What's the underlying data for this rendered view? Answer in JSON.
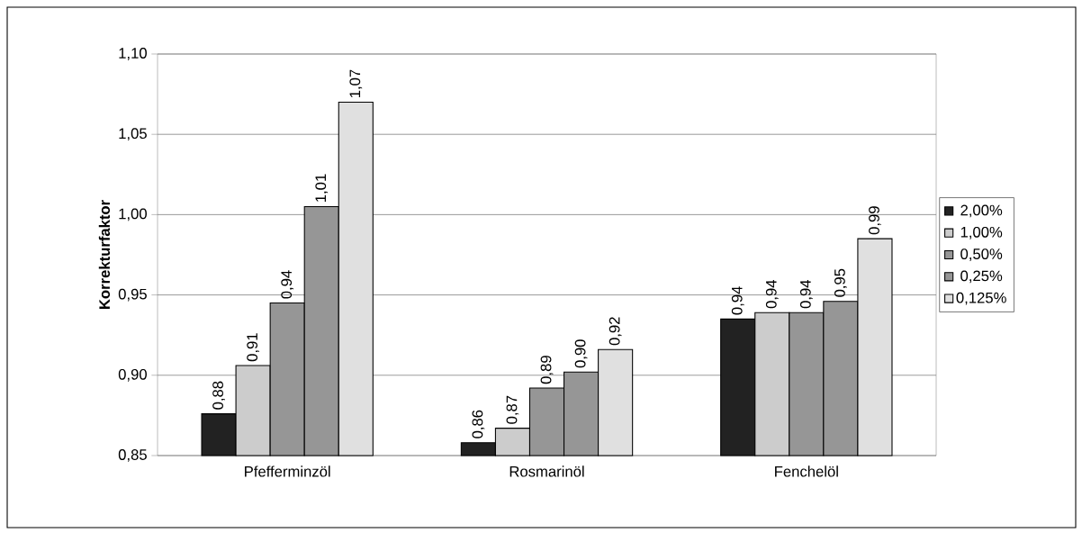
{
  "chart_data": {
    "type": "bar",
    "ylabel": "Korrekturfaktor",
    "categories": [
      "Pfefferminzöl",
      "Rosmarinöl",
      "Fenchelöl"
    ],
    "series": [
      {
        "name": "2,00%",
        "color": "#222222",
        "values": [
          0.876,
          0.858,
          0.935
        ],
        "value_labels": [
          "0,88",
          "0,86",
          "0,94"
        ]
      },
      {
        "name": "1,00%",
        "color": "#cccccc",
        "values": [
          0.906,
          0.867,
          0.939
        ],
        "value_labels": [
          "0,91",
          "0,87",
          "0,94"
        ]
      },
      {
        "name": "0,50%",
        "color": "#969696",
        "values": [
          0.945,
          0.892,
          0.939
        ],
        "value_labels": [
          "0,94",
          "0,89",
          "0,94"
        ]
      },
      {
        "name": "0,25%",
        "color": "#969696",
        "values": [
          1.005,
          0.902,
          0.946
        ],
        "value_labels": [
          "1,01",
          "0,90",
          "0,95"
        ]
      },
      {
        "name": "0,125%",
        "color": "#e0e0e0",
        "values": [
          1.07,
          0.916,
          0.985
        ],
        "value_labels": [
          "1,07",
          "0,92",
          "0,99"
        ]
      }
    ],
    "ylim": [
      0.85,
      1.1
    ],
    "yticks": [
      {
        "value": 0.85,
        "label": "0,85"
      },
      {
        "value": 0.9,
        "label": "0,90"
      },
      {
        "value": 0.95,
        "label": "0,95"
      },
      {
        "value": 1.0,
        "label": "1,00"
      },
      {
        "value": 1.05,
        "label": "1,05"
      },
      {
        "value": 1.1,
        "label": "1,10"
      }
    ],
    "grid": "y",
    "legend": "right"
  }
}
